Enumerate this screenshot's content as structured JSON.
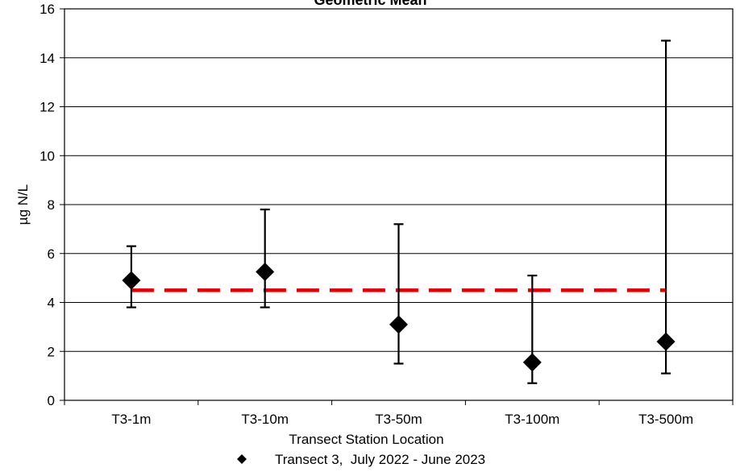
{
  "chart_data": {
    "type": "scatter",
    "title": "Geometric Mean",
    "xlabel": "Transect Station Location",
    "ylabel": "µg N/L",
    "categories": [
      "T3-1m",
      "T3-10m",
      "T3-50m",
      "T3-100m",
      "T3-500m"
    ],
    "ylim": [
      0,
      16
    ],
    "yticks": [
      "0",
      "2",
      "4",
      "6",
      "8",
      "10",
      "12",
      "14",
      "16"
    ],
    "grid": true,
    "series": [
      {
        "name": "Transect 3,  July 2022 - June 2023",
        "marker": "diamond",
        "color": "#000000",
        "values": [
          4.9,
          5.25,
          3.1,
          1.55,
          2.4
        ],
        "error_low": [
          3.8,
          3.8,
          1.5,
          0.7,
          1.1
        ],
        "error_high": [
          6.3,
          7.8,
          7.2,
          5.1,
          14.7
        ]
      }
    ],
    "reference_line": {
      "value": 4.5,
      "style": "dashed",
      "color": "#e00000"
    },
    "legend_position": "bottom-center"
  }
}
